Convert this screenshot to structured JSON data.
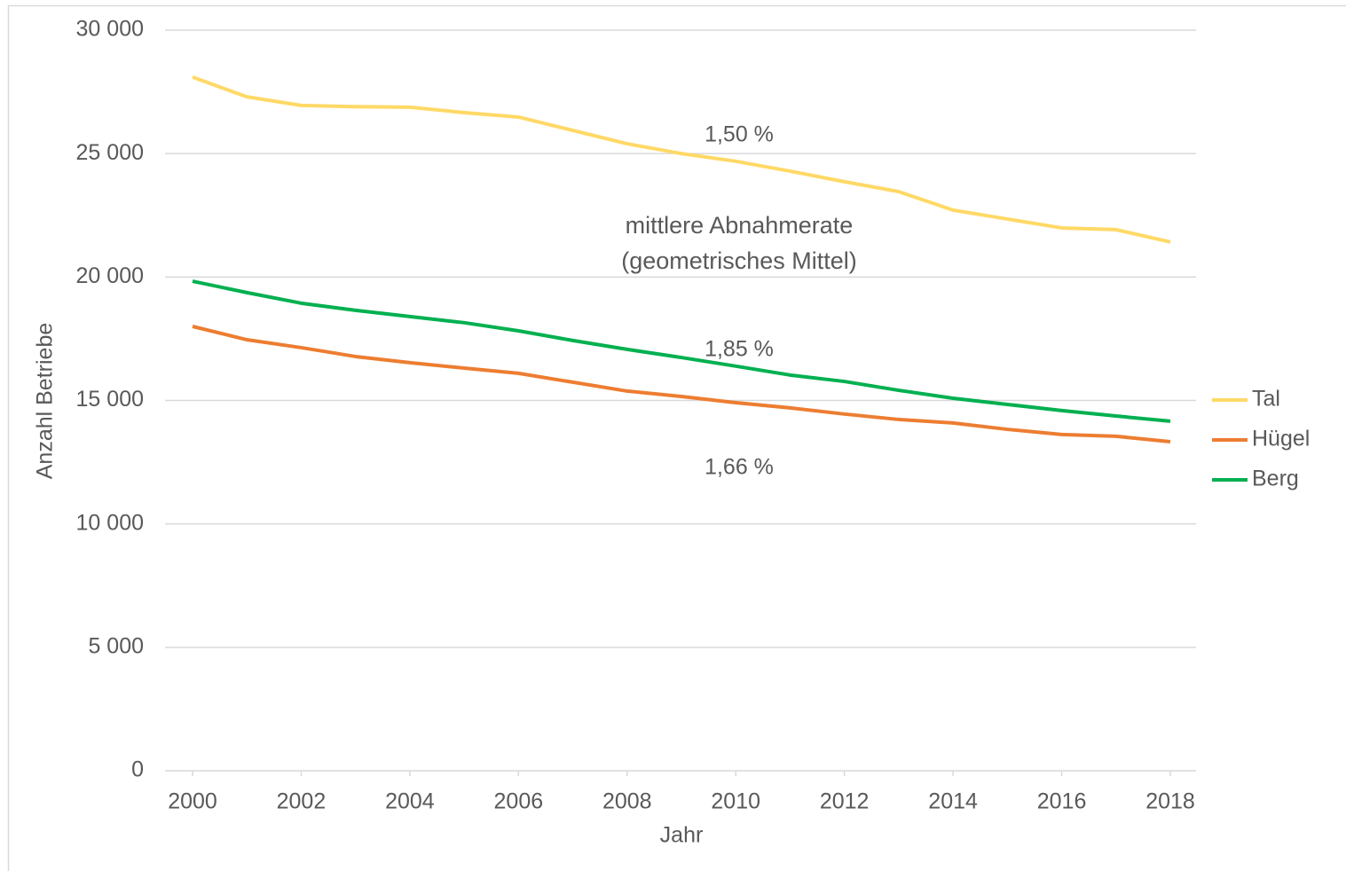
{
  "chart_data": {
    "type": "line",
    "x_label": "Jahr",
    "y_label": "Anzahl Betriebe",
    "x": [
      2000,
      2001,
      2002,
      2003,
      2004,
      2005,
      2006,
      2007,
      2008,
      2009,
      2010,
      2011,
      2012,
      2013,
      2014,
      2015,
      2016,
      2017,
      2018
    ],
    "xlim": [
      2000,
      2018
    ],
    "xticks": [
      2000,
      2002,
      2004,
      2006,
      2008,
      2010,
      2012,
      2014,
      2016,
      2018
    ],
    "ylim": [
      0,
      30000
    ],
    "yticks": [
      0,
      {
        "value": 5000,
        "label": "5 000"
      },
      {
        "value": 10000,
        "label": "10 000"
      },
      {
        "value": 15000,
        "label": "15 000"
      },
      {
        "value": 20000,
        "label": "20 000"
      },
      {
        "value": 25000,
        "label": "25 000"
      },
      {
        "value": 30000,
        "label": "30 000"
      }
    ],
    "grid": true,
    "legend": "right",
    "series": [
      {
        "name": "Tal",
        "color": "#ffd966",
        "values": [
          28100,
          27300,
          26950,
          26900,
          26880,
          26660,
          26480,
          25940,
          25400,
          25000,
          24690,
          24290,
          23860,
          23460,
          22710,
          22350,
          21990,
          21920,
          21420
        ]
      },
      {
        "name": "Hügel",
        "color": "#ed7d31",
        "values": [
          18000,
          17460,
          17140,
          16780,
          16530,
          16310,
          16100,
          15740,
          15380,
          15160,
          14910,
          14700,
          14450,
          14230,
          14090,
          13830,
          13620,
          13550,
          13330
        ]
      },
      {
        "name": "Berg",
        "color": "#00b050",
        "values": [
          19830,
          19370,
          18940,
          18650,
          18400,
          18150,
          17820,
          17430,
          17070,
          16740,
          16390,
          16030,
          15770,
          15410,
          15090,
          14840,
          14590,
          14370,
          14160
        ]
      }
    ],
    "annotations": [
      "1,50 %",
      "mittlere Abnahmerate",
      "(geometrisches Mittel)",
      "1,85 %",
      "1,66 %"
    ]
  }
}
